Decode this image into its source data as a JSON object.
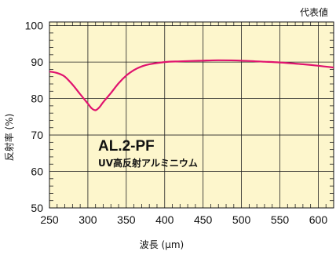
{
  "chart_data": {
    "type": "line",
    "corner_label": "代表値",
    "xlabel": "波長 (μm)",
    "ylabel": "反射率 (%)",
    "xlim": [
      250,
      620
    ],
    "ylim": [
      50,
      101
    ],
    "x_ticks": [
      250,
      300,
      350,
      400,
      450,
      500,
      550,
      600
    ],
    "y_ticks": [
      50,
      60,
      70,
      80,
      90,
      100
    ],
    "grid": true,
    "background_color": "#fdf6cc",
    "annotation": {
      "title": "AL.2-PF",
      "subtitle": "UV高反射アルミニウム"
    },
    "series": [
      {
        "color": "#e0136f",
        "x": [
          250,
          260,
          270,
          280,
          290,
          300,
          305,
          310,
          315,
          320,
          330,
          340,
          350,
          360,
          370,
          380,
          400,
          420,
          450,
          470,
          500,
          530,
          550,
          580,
          600,
          620
        ],
        "y": [
          87.4,
          87.0,
          86.0,
          83.8,
          81.2,
          78.6,
          77.3,
          76.8,
          77.6,
          79.0,
          81.5,
          84.2,
          86.3,
          87.8,
          88.8,
          89.4,
          90.0,
          90.2,
          90.4,
          90.5,
          90.4,
          90.1,
          89.9,
          89.4,
          89.0,
          88.5
        ]
      }
    ]
  }
}
